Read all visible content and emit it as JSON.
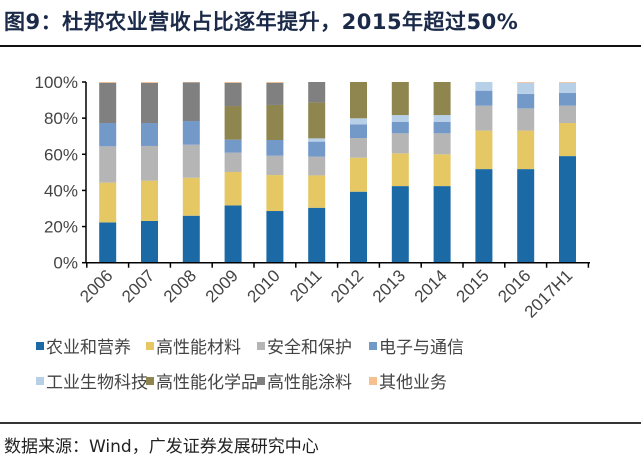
{
  "title": "图9：杜邦农业营收占比逐年提升，2015年超过50%",
  "source": "数据来源：Wind，广发证券发展研究中心",
  "chart_data": {
    "type": "bar",
    "stacked": true,
    "title": "",
    "xlabel": "",
    "ylabel": "",
    "ylim": [
      0,
      100
    ],
    "ytick_labels": [
      "0%",
      "20%",
      "40%",
      "60%",
      "80%",
      "100%"
    ],
    "yticks": [
      0,
      20,
      40,
      60,
      80,
      100
    ],
    "grid": false,
    "legend": "bottom",
    "categories": [
      "2006",
      "2007",
      "2008",
      "2009",
      "2010",
      "2011",
      "2012",
      "2013",
      "2014",
      "2015",
      "2016",
      "2017H1"
    ],
    "series": [
      {
        "name": "农业和营养",
        "color": "#1b6aa5",
        "values": [
          22.3,
          23.1,
          26.0,
          31.7,
          28.6,
          30.4,
          39.3,
          42.4,
          42.4,
          51.8,
          51.8,
          59.0
        ]
      },
      {
        "name": "高性能材料",
        "color": "#e5c864",
        "values": [
          22.0,
          22.3,
          21.0,
          18.5,
          19.9,
          17.9,
          18.8,
          18.1,
          17.6,
          21.3,
          21.3,
          18.3
        ]
      },
      {
        "name": "安全和保护",
        "color": "#b5b5b5",
        "values": [
          20.1,
          19.2,
          18.3,
          10.7,
          10.7,
          10.4,
          10.9,
          11.1,
          11.6,
          13.8,
          12.3,
          9.6
        ]
      },
      {
        "name": "电子与通信",
        "color": "#7399c9",
        "values": [
          12.9,
          12.7,
          13.1,
          7.2,
          8.7,
          8.3,
          7.6,
          6.4,
          6.4,
          8.3,
          8.0,
          7.0
        ]
      },
      {
        "name": "工业生物科技",
        "color": "#b8cfe8",
        "values": [
          0,
          0,
          0,
          0,
          0,
          1.8,
          3.3,
          3.7,
          3.7,
          4.8,
          6.2,
          5.7
        ]
      },
      {
        "name": "高性能化学品",
        "color": "#8f864f",
        "values": [
          0,
          0,
          0,
          18.6,
          19.4,
          19.9,
          20.1,
          18.3,
          18.3,
          0,
          0,
          0
        ]
      },
      {
        "name": "高性能涂料",
        "color": "#808080",
        "values": [
          22.3,
          22.2,
          21.4,
          12.9,
          12.3,
          11.3,
          0,
          0,
          0,
          0,
          0,
          0
        ]
      },
      {
        "name": "其他业务",
        "color": "#f7c08f",
        "values": [
          0.4,
          0.5,
          0.2,
          0.4,
          0.4,
          0,
          0,
          0,
          0,
          0,
          0.4,
          0.4
        ]
      }
    ]
  }
}
